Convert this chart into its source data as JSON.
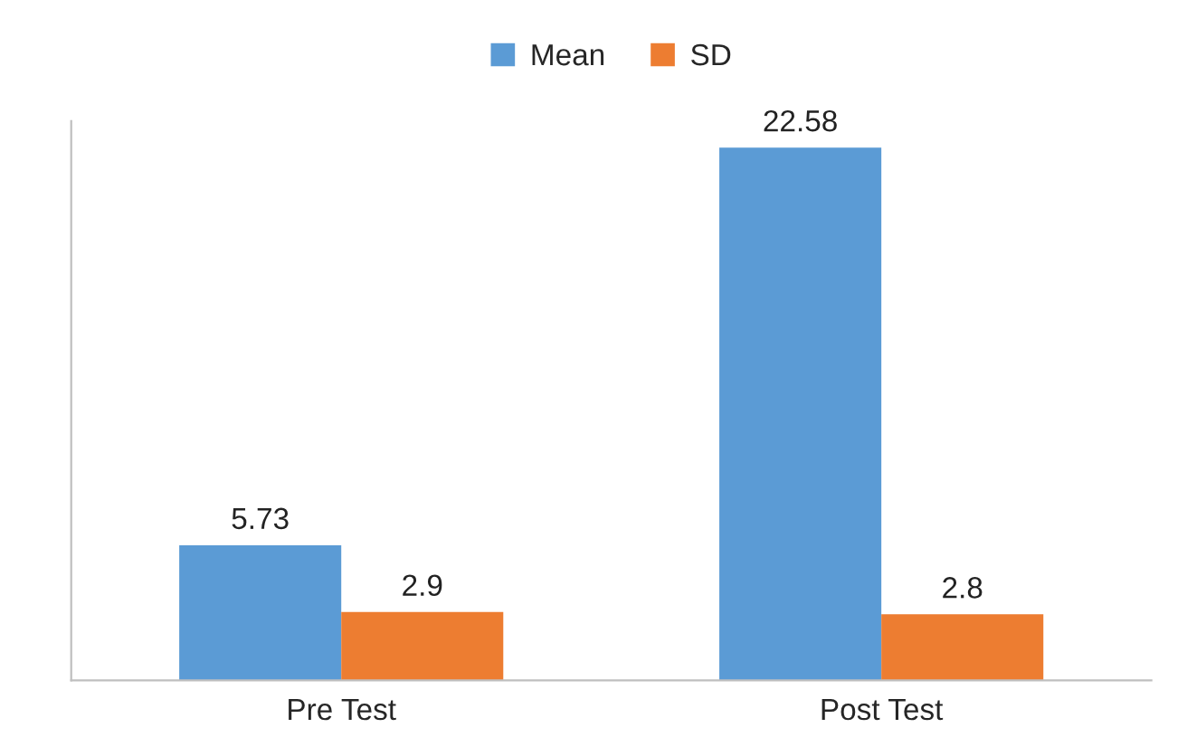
{
  "chart_data": {
    "type": "bar",
    "categories": [
      "Pre Test",
      "Post Test"
    ],
    "series": [
      {
        "name": "Mean",
        "color": "#5b9bd5",
        "values": [
          5.73,
          22.58
        ]
      },
      {
        "name": "SD",
        "color": "#ed7d31",
        "values": [
          2.9,
          2.8
        ]
      }
    ],
    "data_labels": true,
    "legend": "top"
  }
}
